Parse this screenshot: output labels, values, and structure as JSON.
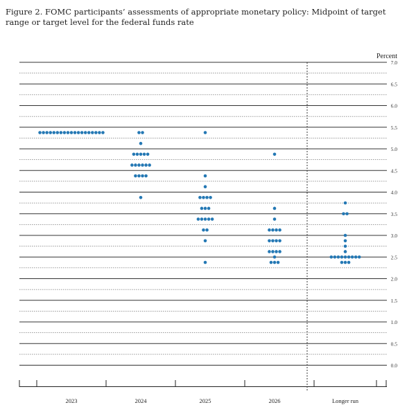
{
  "title": "Figure 2.  FOMC participants’ assessments of appropriate monetary policy: Midpoint of target range or target level for the federal funds rate",
  "chart_data": {
    "type": "scatter",
    "subtype": "dot-plot",
    "title": "Figure 2.  FOMC participants’ assessments of appropriate monetary policy: Midpoint of target range or target level for the federal funds rate",
    "ylabel": "Percent",
    "ylim": [
      0,
      7
    ],
    "yticks": [
      "0.0",
      "0.5",
      "1.0",
      "1.5",
      "2.0",
      "2.5",
      "3.0",
      "3.5",
      "4.0",
      "4.5",
      "5.0",
      "5.5",
      "6.0",
      "6.5",
      "7.0"
    ],
    "categories": [
      "2023",
      "2024",
      "2025",
      "2026",
      "Longer run"
    ],
    "dot_color": "#2478b4",
    "series": [
      {
        "category": "2023",
        "levels": [
          {
            "y": 5.375,
            "count": 19
          }
        ]
      },
      {
        "category": "2024",
        "levels": [
          {
            "y": 5.375,
            "count": 2
          },
          {
            "y": 5.125,
            "count": 1
          },
          {
            "y": 4.875,
            "count": 5
          },
          {
            "y": 4.625,
            "count": 6
          },
          {
            "y": 4.375,
            "count": 4
          },
          {
            "y": 3.875,
            "count": 1
          }
        ]
      },
      {
        "category": "2025",
        "levels": [
          {
            "y": 5.375,
            "count": 1
          },
          {
            "y": 4.375,
            "count": 1
          },
          {
            "y": 4.125,
            "count": 1
          },
          {
            "y": 3.875,
            "count": 4
          },
          {
            "y": 3.625,
            "count": 3
          },
          {
            "y": 3.375,
            "count": 5
          },
          {
            "y": 3.125,
            "count": 2
          },
          {
            "y": 2.875,
            "count": 1
          },
          {
            "y": 2.375,
            "count": 1
          }
        ]
      },
      {
        "category": "2026",
        "levels": [
          {
            "y": 4.875,
            "count": 1
          },
          {
            "y": 3.625,
            "count": 1
          },
          {
            "y": 3.375,
            "count": 1
          },
          {
            "y": 3.125,
            "count": 4
          },
          {
            "y": 2.875,
            "count": 4
          },
          {
            "y": 2.625,
            "count": 4
          },
          {
            "y": 2.5,
            "count": 1
          },
          {
            "y": 2.375,
            "count": 3
          }
        ]
      },
      {
        "category": "Longer run",
        "levels": [
          {
            "y": 3.75,
            "count": 1
          },
          {
            "y": 3.5,
            "count": 2
          },
          {
            "y": 3.0,
            "count": 1
          },
          {
            "y": 2.875,
            "count": 1
          },
          {
            "y": 2.75,
            "count": 1
          },
          {
            "y": 2.625,
            "count": 1
          },
          {
            "y": 2.5,
            "count": 9
          },
          {
            "y": 2.375,
            "count": 3
          }
        ]
      }
    ],
    "grid": true,
    "separator_before": "Longer run"
  }
}
